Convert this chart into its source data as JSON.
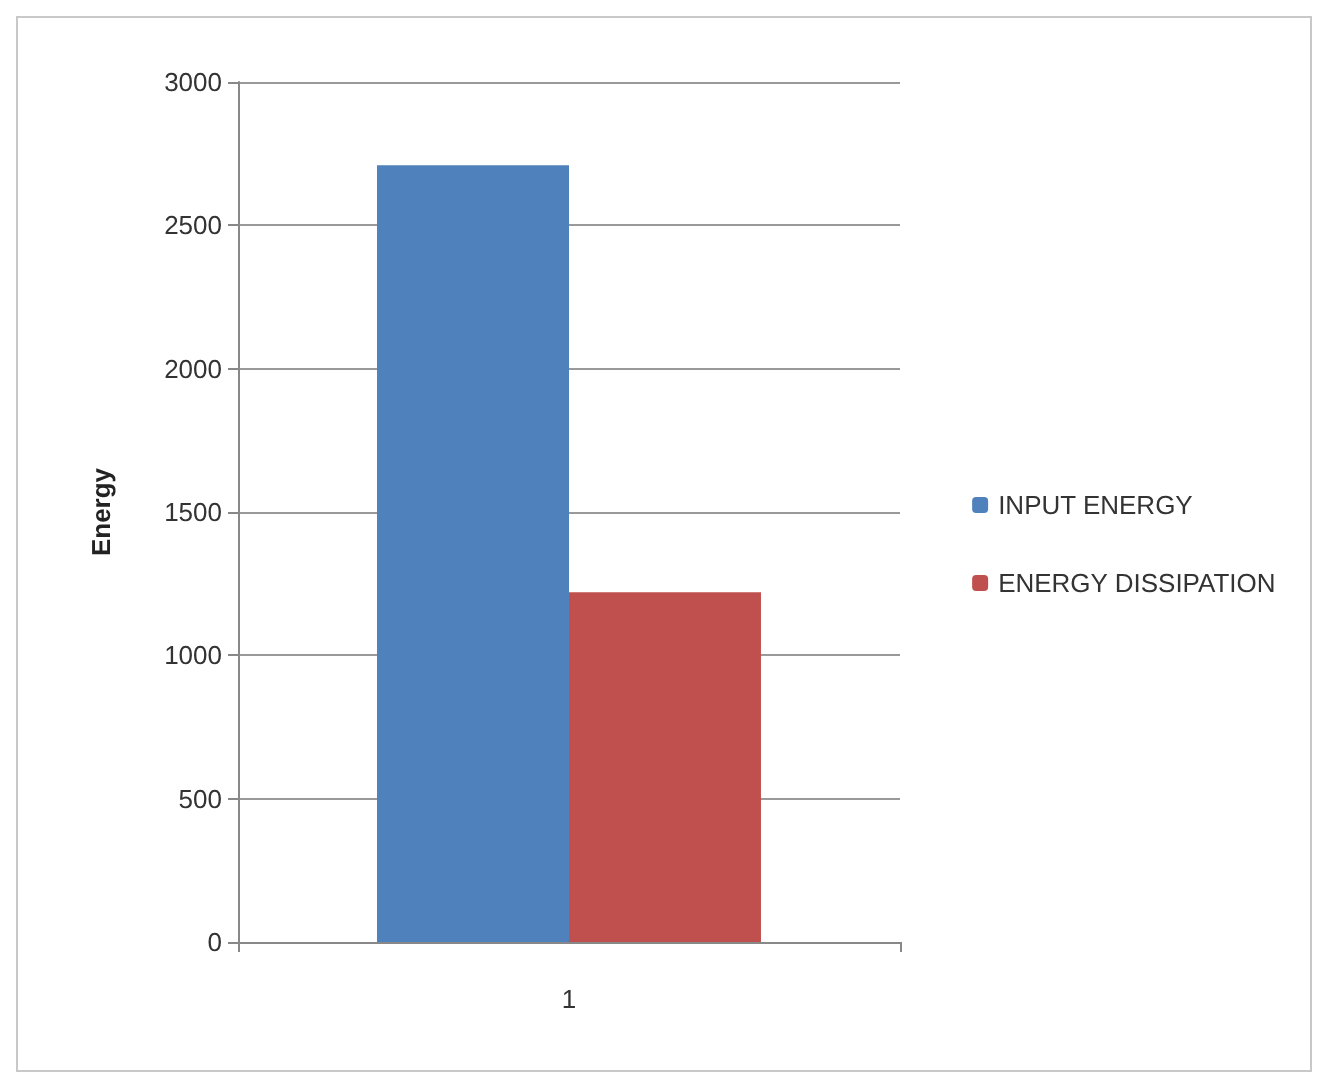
{
  "chart_data": {
    "type": "bar",
    "ylabel": "Energy",
    "categories": [
      "1"
    ],
    "series": [
      {
        "name": "INPUT ENERGY",
        "color": "#4f81bd",
        "values": [
          2710
        ]
      },
      {
        "name": "ENERGY DISSIPATION",
        "color": "#c0504d",
        "values": [
          1220
        ]
      }
    ],
    "ylim": [
      0,
      3000
    ],
    "yticks": [
      0,
      500,
      1000,
      1500,
      2000,
      2500,
      3000
    ],
    "grid": "y",
    "legend": "right"
  }
}
